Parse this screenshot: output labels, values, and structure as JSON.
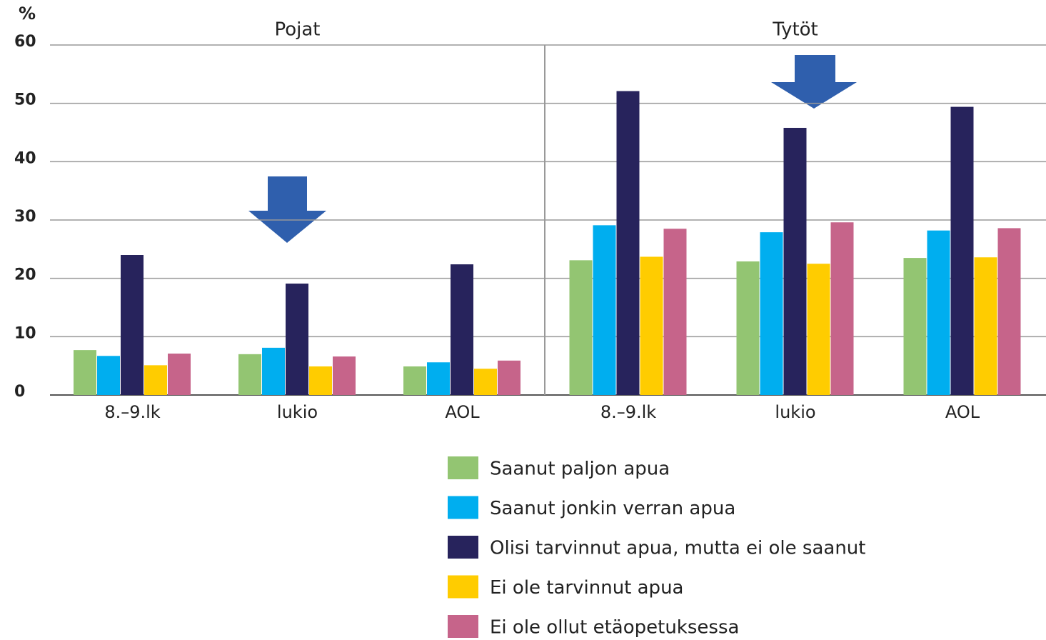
{
  "chart_data": {
    "type": "bar",
    "ylabel": "%",
    "ylim": [
      0,
      60
    ],
    "yticks": [
      0,
      10,
      20,
      30,
      40,
      50,
      60
    ],
    "grid": true,
    "panels": [
      {
        "title": "Pojat"
      },
      {
        "title": "Tytöt"
      }
    ],
    "categories": [
      "8.–9.lk",
      "lukio",
      "AOL",
      "8.–9.lk",
      "lukio",
      "AOL"
    ],
    "series": [
      {
        "name": "Saanut paljon apua",
        "color": "#93c572",
        "values": [
          7.7,
          7.0,
          4.9,
          23.1,
          22.9,
          23.5
        ]
      },
      {
        "name": "Saanut jonkin verran apua",
        "color": "#00aeef",
        "values": [
          6.7,
          8.1,
          5.6,
          29.1,
          27.9,
          28.2
        ]
      },
      {
        "name": "Olisi tarvinnut apua, mutta ei ole saanut",
        "color": "#27235c",
        "values": [
          24.0,
          19.1,
          22.4,
          52.1,
          45.8,
          49.4
        ]
      },
      {
        "name": "Ei ole tarvinnut apua",
        "color": "#ffcc00",
        "values": [
          5.1,
          4.9,
          4.5,
          23.7,
          22.5,
          23.6
        ]
      },
      {
        "name": "Ei ole ollut etäopetuksessa",
        "color": "#c6648a",
        "values": [
          7.1,
          6.6,
          5.9,
          28.5,
          29.6,
          28.6
        ]
      }
    ]
  }
}
